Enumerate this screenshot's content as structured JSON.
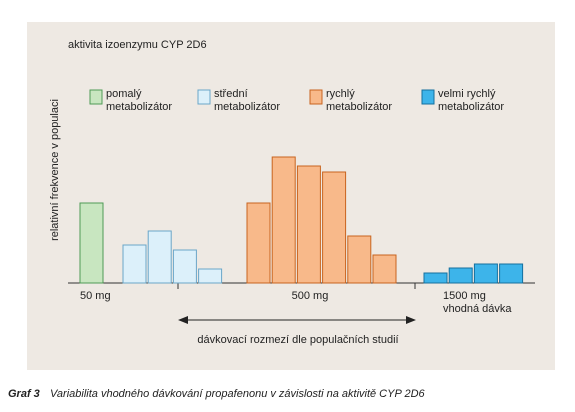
{
  "chart_data": {
    "type": "bar",
    "title": "aktivita izoenzymu CYP 2D6",
    "y_label": "relativní frekvence v populaci",
    "ylim": [
      0,
      140
    ],
    "series": [
      {
        "name": "pomalý metabolizátor",
        "color": "#c8e6c0",
        "edge_color": "#4f9a56",
        "values": [
          80
        ]
      },
      {
        "name": "střední metabolizátor",
        "color": "#dcf0fa",
        "edge_color": "#6aa6c8",
        "values": [
          38,
          52,
          33,
          14
        ]
      },
      {
        "name": "rychlý metabolizátor",
        "color": "#f8b98a",
        "edge_color": "#c8641f",
        "values": [
          80,
          126,
          117,
          111,
          47,
          28
        ]
      },
      {
        "name": "velmi rychlý metabolizátor",
        "color": "#3db4ea",
        "edge_color": "#15709e",
        "values": [
          10,
          15,
          19,
          19
        ]
      }
    ],
    "dose_groups": [
      {
        "label": "50 mg"
      },
      {
        "label": "500 mg"
      },
      {
        "label": "1500 mg",
        "sublabel": "vhodná dávka"
      }
    ],
    "annotation": "dávkovací rozmezí dle populačních studií",
    "caption": {
      "number": "Graf 3",
      "text": "Variabilita vhodného dávkování propafenonu v závislosti na aktivitě CYP 2D6"
    }
  }
}
